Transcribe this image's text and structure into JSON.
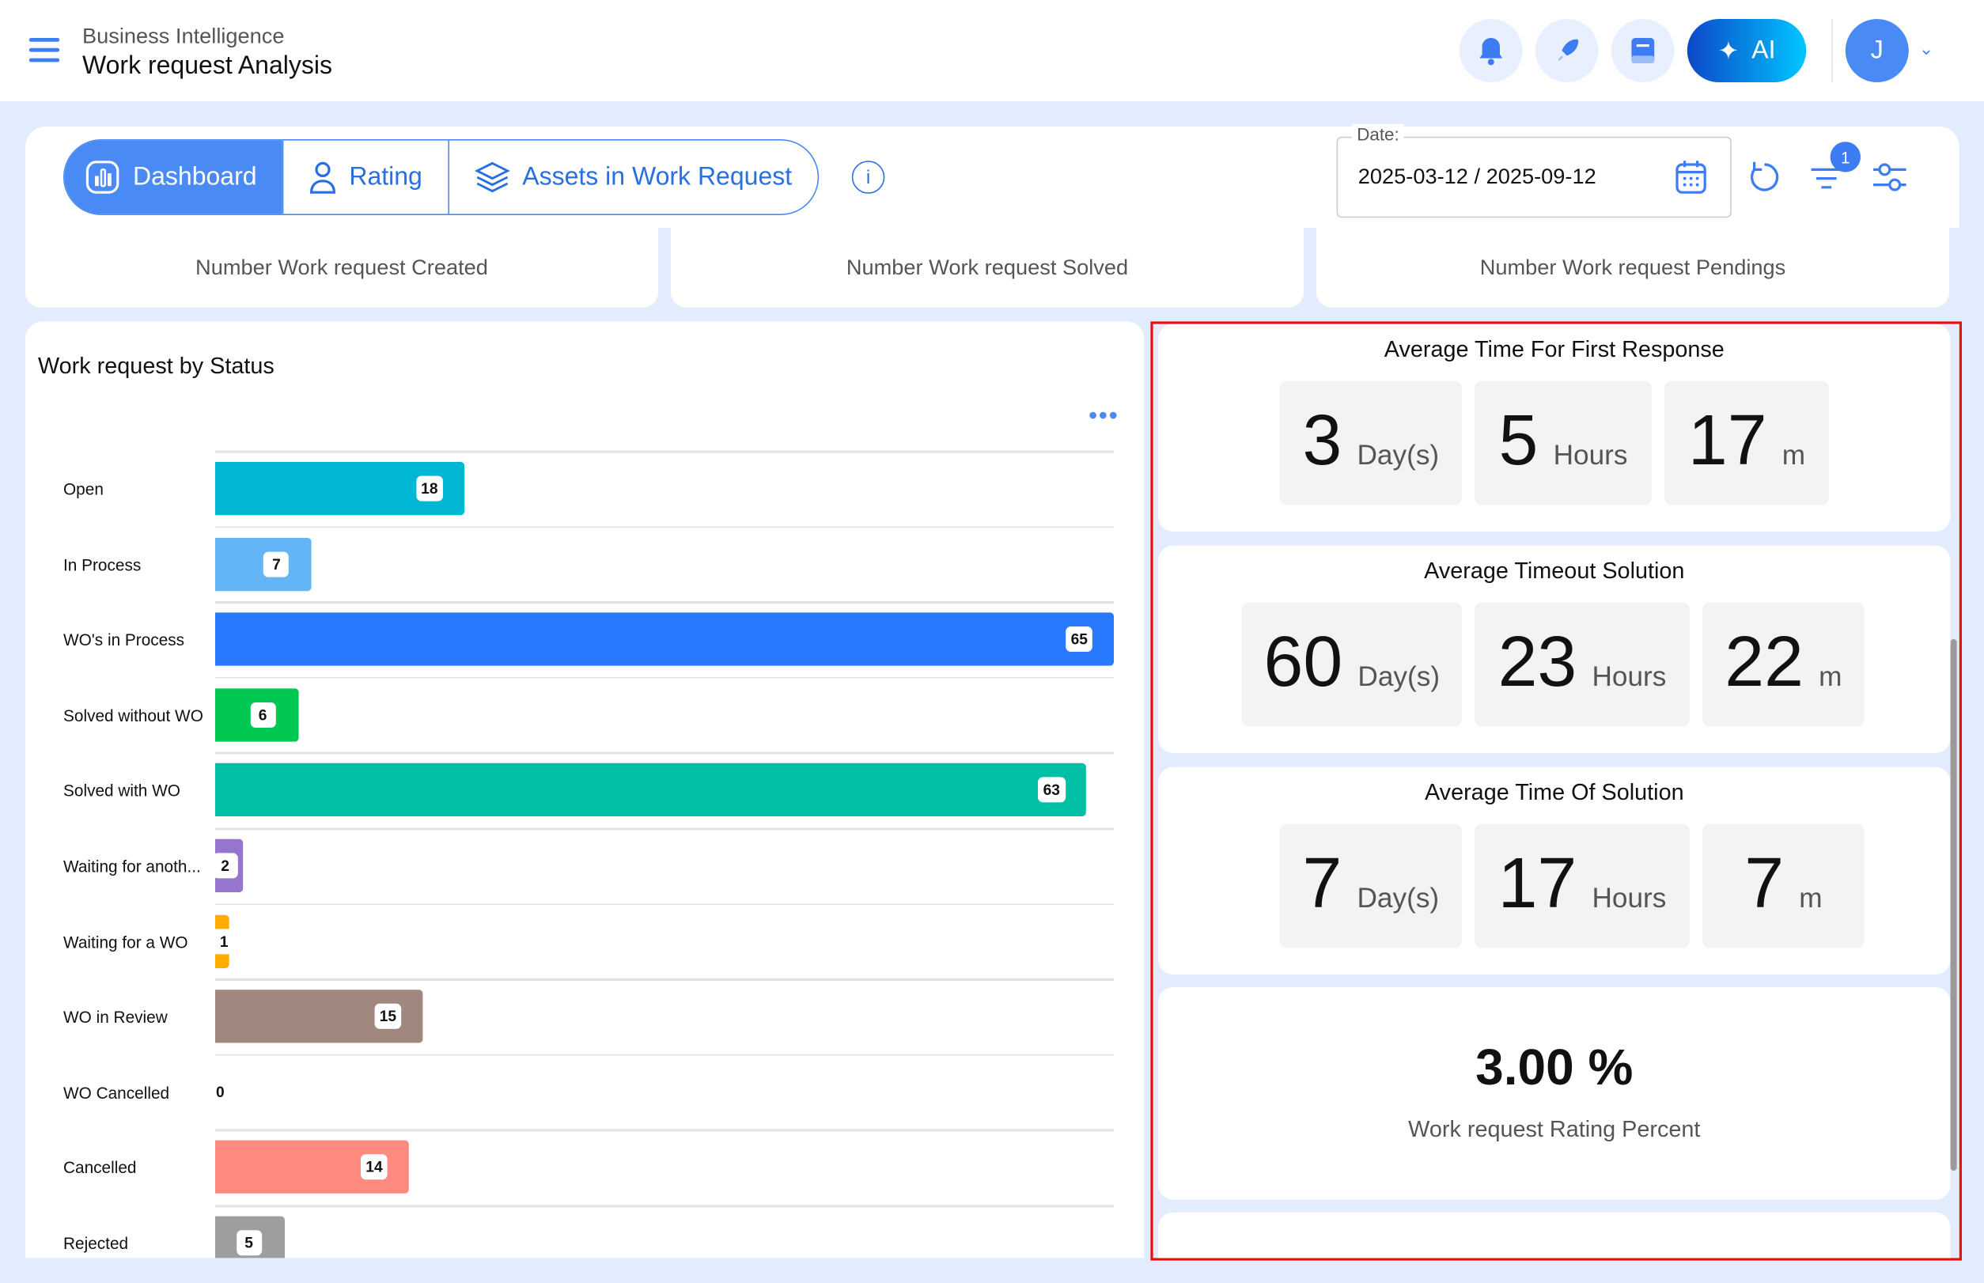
{
  "header": {
    "breadcrumb": "Business Intelligence",
    "title": "Work request Analysis",
    "ai_label": "AI",
    "avatar_initial": "J",
    "icons": [
      "menu-icon",
      "bell-icon",
      "rocket-icon",
      "book-icon",
      "sparkle-icon",
      "chevron-down-icon"
    ]
  },
  "tabs": [
    {
      "label": "Dashboard",
      "icon": "chart-icon",
      "active": true
    },
    {
      "label": "Rating",
      "icon": "user-icon"
    },
    {
      "label": "Assets in Work Request",
      "icon": "layers-icon"
    }
  ],
  "toolbar": {
    "date_label": "Date:",
    "date_value": "2025-03-12 / 2025-09-12",
    "filter_badge": "1"
  },
  "kpis": [
    "Number Work request Created",
    "Number Work request Solved",
    "Number Work request Pendings"
  ],
  "chart_data": {
    "type": "bar",
    "orientation": "horizontal",
    "title": "Work request by Status",
    "xlim": [
      0,
      65
    ],
    "categories": [
      "Open",
      "In Process",
      "WO's in Process",
      "Solved without WO",
      "Solved with WO",
      "Waiting for anoth...",
      "Waiting for a WO",
      "WO in Review",
      "WO Cancelled",
      "Cancelled",
      "Rejected"
    ],
    "values": [
      18,
      7,
      65,
      6,
      63,
      2,
      1,
      15,
      0,
      14,
      5
    ],
    "colors": [
      "#00b8d4",
      "#64b5f6",
      "#2979ff",
      "#00c853",
      "#00bfa5",
      "#9575cd",
      "#ffab00",
      "#a1887f",
      "#bdbdbd",
      "#ff8a80",
      "#9e9e9e"
    ]
  },
  "metrics": [
    {
      "title": "Average Time For First Response",
      "values": [
        {
          "n": "3",
          "u": "Day(s)"
        },
        {
          "n": "5",
          "u": "Hours"
        },
        {
          "n": "17",
          "u": "m"
        }
      ]
    },
    {
      "title": "Average Timeout Solution",
      "values": [
        {
          "n": "60",
          "u": "Day(s)"
        },
        {
          "n": "23",
          "u": "Hours"
        },
        {
          "n": "22",
          "u": "m"
        }
      ]
    },
    {
      "title": "Average Time Of Solution",
      "values": [
        {
          "n": "7",
          "u": "Day(s)"
        },
        {
          "n": "17",
          "u": "Hours"
        },
        {
          "n": "7",
          "u": "m"
        }
      ]
    }
  ],
  "rating": {
    "value": "3.00 %",
    "label": "Work request Rating Percent"
  }
}
